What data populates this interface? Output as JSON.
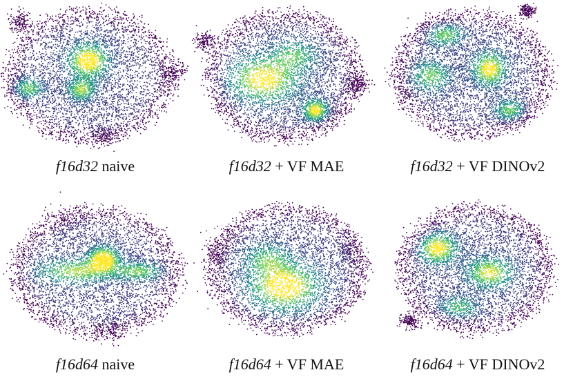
{
  "chart_data": [
    {
      "type": "scatter",
      "model": "f16d32",
      "method": " naive",
      "description_density": "wide oval, dense core at upper center, lobes left and right"
    },
    {
      "type": "scatter",
      "model": "f16d32",
      "method": " + VF MAE",
      "description_density": "rounded blob, dense region left-center, hot spot lower right"
    },
    {
      "type": "scatter",
      "model": "f16d32",
      "method": " + VF DINOv2",
      "description_density": "rounded blob with several dense clusters"
    },
    {
      "type": "scatter",
      "model": "f16d64",
      "method": " naive",
      "description_density": "diamond shape with horizontal dense band"
    },
    {
      "type": "scatter",
      "model": "f16d64",
      "method": " + VF MAE",
      "description_density": "broad blob, dense lower center"
    },
    {
      "type": "scatter",
      "model": "f16d64",
      "method": " + VF DINOv2",
      "description_density": "rounded blob with dense swirl upper left and center right"
    }
  ],
  "colormap": [
    "#440154",
    "#3b528b",
    "#21918c",
    "#5ec962",
    "#fde725"
  ]
}
